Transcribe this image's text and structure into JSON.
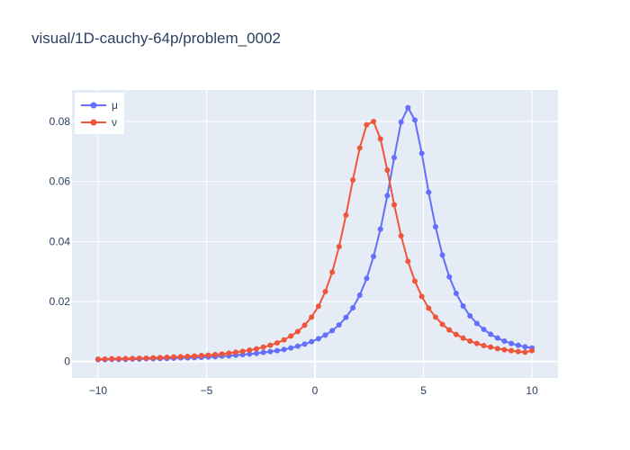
{
  "chart_data": {
    "type": "line",
    "title": "visual/1D-cauchy-64p/problem_0002",
    "xlabel": "",
    "ylabel": "",
    "xlim": [
      -11.2,
      11.2
    ],
    "ylim": [
      -0.0055,
      0.0905
    ],
    "grid": true,
    "legend_position": "top-left",
    "x_ticks": [
      -10,
      -5,
      0,
      5,
      10
    ],
    "x_tick_labels": [
      "−10",
      "−5",
      "0",
      "5",
      "10"
    ],
    "y_ticks": [
      0,
      0.02,
      0.04,
      0.06,
      0.08
    ],
    "y_tick_labels": [
      "0",
      "0.02",
      "0.04",
      "0.06",
      "0.08"
    ],
    "x": [
      -10,
      -9.683,
      -9.365,
      -9.048,
      -8.73,
      -8.413,
      -8.095,
      -7.778,
      -7.46,
      -7.143,
      -6.825,
      -6.508,
      -6.19,
      -5.873,
      -5.556,
      -5.238,
      -4.921,
      -4.603,
      -4.286,
      -3.968,
      -3.651,
      -3.333,
      -3.016,
      -2.698,
      -2.381,
      -2.063,
      -1.746,
      -1.429,
      -1.111,
      -0.794,
      -0.476,
      -0.159,
      0.159,
      0.476,
      0.794,
      1.111,
      1.429,
      1.746,
      2.063,
      2.381,
      2.698,
      3.016,
      3.333,
      3.651,
      3.968,
      4.286,
      4.603,
      4.921,
      5.238,
      5.556,
      5.873,
      6.19,
      6.508,
      6.825,
      7.143,
      7.46,
      7.778,
      8.095,
      8.413,
      8.73,
      9.048,
      9.365,
      9.683,
      10
    ],
    "series": [
      {
        "name": "μ",
        "color": "#636efa",
        "values": [
          0.0006,
          0.0006,
          0.0007,
          0.0007,
          0.0007,
          0.0008,
          0.0008,
          0.0009,
          0.0009,
          0.001,
          0.001,
          0.0011,
          0.0012,
          0.0012,
          0.0013,
          0.0014,
          0.0015,
          0.0016,
          0.0018,
          0.0019,
          0.0021,
          0.0023,
          0.0025,
          0.0027,
          0.003,
          0.0033,
          0.0036,
          0.004,
          0.0045,
          0.0051,
          0.0058,
          0.0066,
          0.0076,
          0.0088,
          0.0103,
          0.0122,
          0.0147,
          0.0179,
          0.0221,
          0.0277,
          0.035,
          0.0441,
          0.0553,
          0.068,
          0.0798,
          0.0846,
          0.0805,
          0.0694,
          0.0564,
          0.0449,
          0.0355,
          0.0282,
          0.0227,
          0.0185,
          0.0152,
          0.0127,
          0.0107,
          0.0091,
          0.0078,
          0.0068,
          0.006,
          0.0054,
          0.0049,
          0.0045
        ]
      },
      {
        "name": "ν",
        "color": "#ef553b",
        "values": [
          0.0008,
          0.0008,
          0.0009,
          0.0009,
          0.001,
          0.001,
          0.0011,
          0.0011,
          0.0012,
          0.0013,
          0.0014,
          0.0015,
          0.0016,
          0.0017,
          0.0018,
          0.002,
          0.0021,
          0.0023,
          0.0025,
          0.0028,
          0.0031,
          0.0034,
          0.0038,
          0.0042,
          0.0048,
          0.0054,
          0.0062,
          0.0072,
          0.0085,
          0.01,
          0.0121,
          0.0148,
          0.0184,
          0.0233,
          0.0298,
          0.0383,
          0.0488,
          0.0605,
          0.0712,
          0.0789,
          0.08,
          0.0742,
          0.0638,
          0.0522,
          0.0419,
          0.0334,
          0.0268,
          0.0217,
          0.0178,
          0.0148,
          0.0124,
          0.0105,
          0.009,
          0.0078,
          0.0068,
          0.006,
          0.0053,
          0.0048,
          0.0043,
          0.0039,
          0.0036,
          0.0033,
          0.0031,
          0.0036
        ]
      }
    ]
  }
}
